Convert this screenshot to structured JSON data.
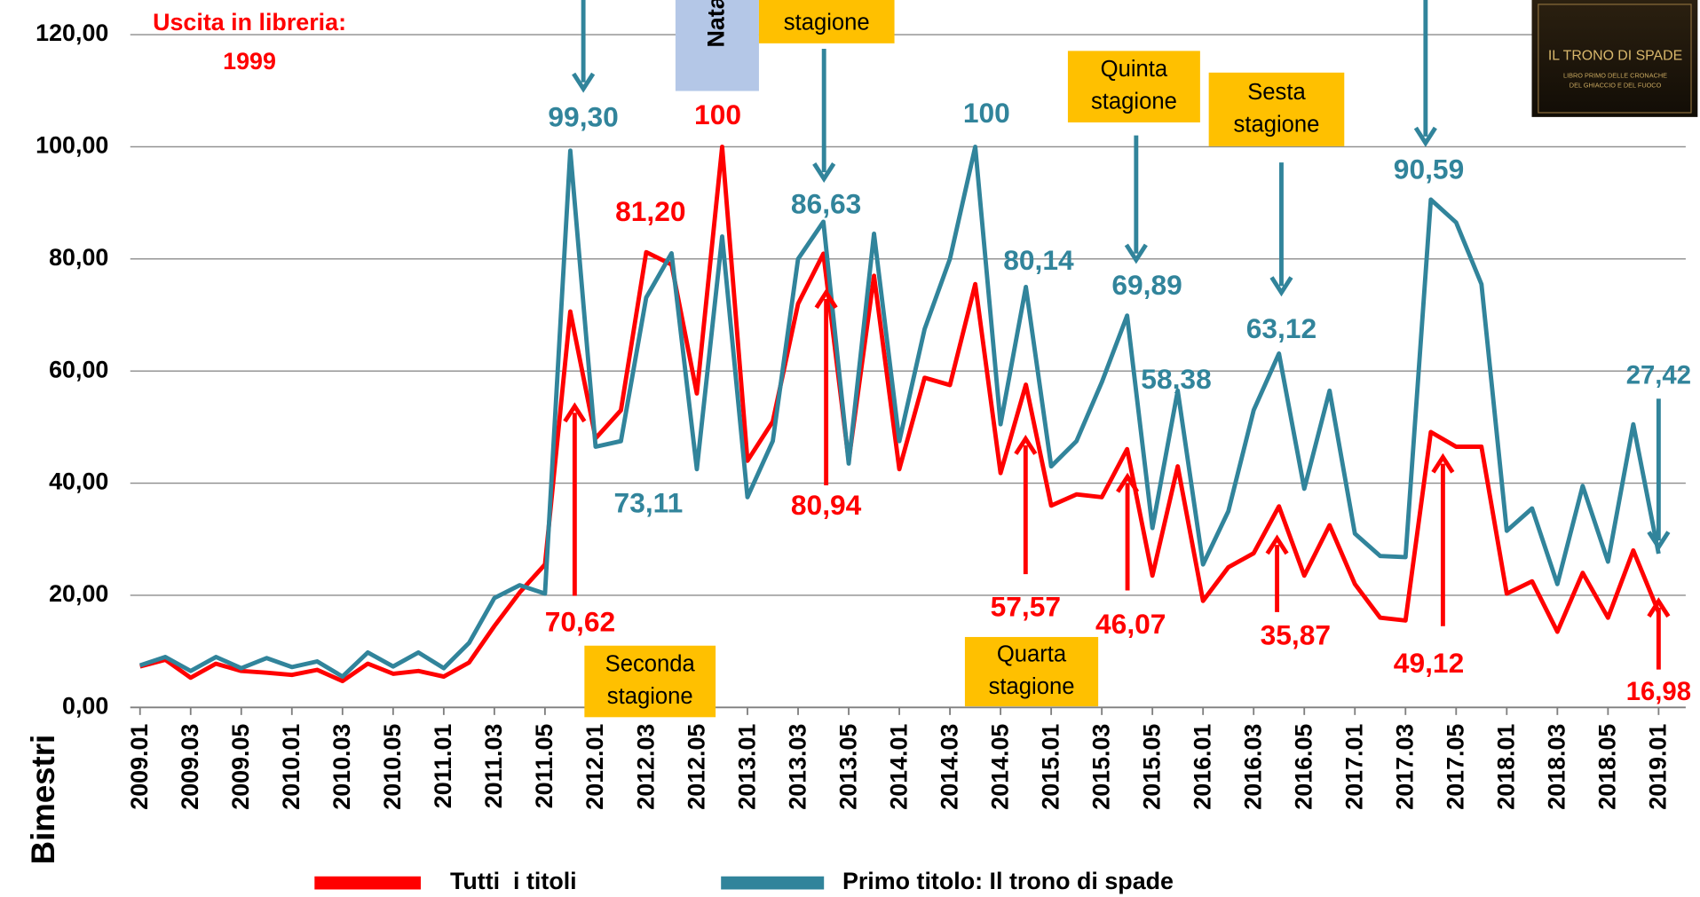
{
  "chart_data": {
    "type": "line",
    "x_title": "Bimestri",
    "categories": [
      "2009.01",
      null,
      "2009.03",
      null,
      "2009.05",
      null,
      "2010.01",
      null,
      "2010.03",
      null,
      "2010.05",
      null,
      "2011.01",
      null,
      "2011.03",
      null,
      "2011.05",
      null,
      "2012.01",
      null,
      "2012.03",
      null,
      "2012.05",
      null,
      "2013.01",
      null,
      "2013.03",
      null,
      "2013.05",
      null,
      "2014.01",
      null,
      "2014.03",
      null,
      "2014.05",
      null,
      "2015.01",
      null,
      "2015.03",
      null,
      "2015.05",
      null,
      "2016.01",
      null,
      "2016.03",
      null,
      "2016.05",
      null,
      "2017.01",
      null,
      "2017.03",
      null,
      "2017.05",
      null,
      "2018.01",
      null,
      "2018.03",
      null,
      "2018.05",
      null,
      "2019.01"
    ],
    "series": [
      {
        "name": "Tutti  i titoli",
        "color": "#ff0000",
        "values": [
          7.3,
          8.5,
          5.3,
          7.8,
          6.5,
          6.2,
          5.8,
          6.7,
          4.7,
          7.8,
          6,
          6.5,
          5.5,
          8,
          14.5,
          20.5,
          25.5,
          70.62,
          48,
          53,
          81.2,
          79,
          56,
          100,
          44,
          51,
          72,
          80.94,
          44,
          77,
          42.5,
          58.8,
          57.5,
          75.5,
          41.8,
          57.57,
          36,
          38,
          37.5,
          46.07,
          23.5,
          43,
          19,
          25,
          27.5,
          35.87,
          23.5,
          32.5,
          22,
          16,
          15.5,
          49.12,
          46.5,
          46.5,
          20.3,
          22.5,
          13.5,
          24,
          16,
          28,
          16.98
        ]
      },
      {
        "name": "Primo titolo: Il trono di spade",
        "color": "#31849b",
        "values": [
          7.5,
          9,
          6.5,
          9,
          7,
          8.8,
          7.2,
          8.2,
          5.5,
          9.8,
          7.3,
          9.8,
          7,
          11.5,
          19.5,
          21.8,
          20.3,
          99.3,
          46.5,
          47.5,
          73.11,
          81,
          42.5,
          84,
          37.5,
          47.5,
          80,
          86.63,
          43.5,
          84.5,
          47.5,
          67.5,
          80,
          100,
          50.5,
          75,
          43,
          47.5,
          58,
          69.89,
          32,
          56.5,
          25.5,
          35,
          53,
          63.12,
          39,
          56.5,
          31,
          27,
          26.8,
          90.59,
          86.5,
          75.5,
          31.5,
          35.5,
          22,
          39.5,
          26,
          50.5,
          27.42
        ]
      }
    ],
    "ylim": [
      0,
      120
    ],
    "yticks": [
      {
        "value": 0,
        "label": "0,00"
      },
      {
        "value": 20,
        "label": "20,00"
      },
      {
        "value": 40,
        "label": "40,00"
      },
      {
        "value": 60,
        "label": "60,00"
      },
      {
        "value": 80,
        "label": "80,00"
      },
      {
        "value": 100,
        "label": "100,00"
      },
      {
        "value": 120,
        "label": "120,00"
      }
    ],
    "grid": true,
    "annotations": [
      {
        "text": "Uscita in libreria:",
        "color": "#ff0000"
      },
      {
        "text": "1999",
        "color": "#ff0000"
      },
      {
        "text": "100",
        "color": "#ff0000"
      },
      {
        "text": "81,20",
        "color": "#ff0000"
      },
      {
        "text": "80,94",
        "color": "#ff0000"
      },
      {
        "text": "70,62",
        "color": "#ff0000"
      },
      {
        "text": "57,57",
        "color": "#ff0000"
      },
      {
        "text": "46,07",
        "color": "#ff0000"
      },
      {
        "text": "35,87",
        "color": "#ff0000"
      },
      {
        "text": "49,12",
        "color": "#ff0000"
      },
      {
        "text": "16,98",
        "color": "#ff0000"
      },
      {
        "text": "99,30",
        "color": "#31849b"
      },
      {
        "text": "86,63",
        "color": "#31849b"
      },
      {
        "text": "100",
        "color": "#31849b"
      },
      {
        "text": "80,14",
        "color": "#31849b"
      },
      {
        "text": "69,89",
        "color": "#31849b"
      },
      {
        "text": "63,12",
        "color": "#31849b"
      },
      {
        "text": "58,38",
        "color": "#31849b"
      },
      {
        "text": "90,59",
        "color": "#31849b"
      },
      {
        "text": "27,42",
        "color": "#31849b"
      },
      {
        "text": "73,11",
        "color": "#31849b"
      }
    ],
    "boxes": [
      {
        "lines": [
          "Seconda",
          "stagione"
        ]
      },
      {
        "lines": [
          "Quarta",
          "stagione"
        ]
      },
      {
        "lines": [
          "Quinta",
          "stagione"
        ]
      },
      {
        "lines": [
          "Sesta",
          "stagione"
        ]
      },
      {
        "lines": [
          "stagione"
        ]
      }
    ],
    "side_box": "Nata",
    "book": {
      "title": "IL TRONO DI SPADE",
      "line1": "LIBRO PRIMO DELLE CRONACHE",
      "line2": "DEL GHIACCIO E DEL FUOCO"
    }
  }
}
